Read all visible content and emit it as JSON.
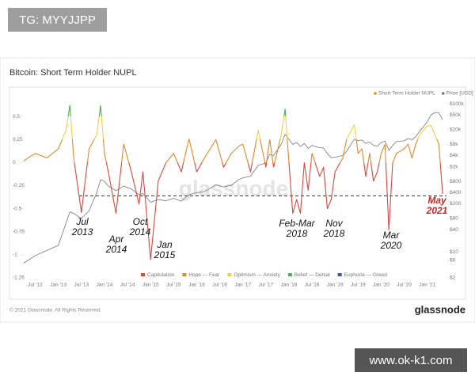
{
  "badges": {
    "top": "TG: MYYJJPP",
    "bottom": "www.ok-k1.com"
  },
  "footer": {
    "copyright": "© 2021 Glassnode. All Rights Reserved.",
    "brand": "glassnode"
  },
  "chart_data": {
    "type": "line",
    "title": "Bitcoin: Short Term Holder NUPL",
    "watermark": "glassnode",
    "x": [
      "2012-04",
      "2012-07",
      "2012-10",
      "2013-01",
      "2013-03",
      "2013-04",
      "2013-05",
      "2013-07",
      "2013-09",
      "2013-11",
      "2013-12",
      "2014-01",
      "2014-02",
      "2014-04",
      "2014-06",
      "2014-08",
      "2014-10",
      "2014-11",
      "2015-01",
      "2015-03",
      "2015-05",
      "2015-07",
      "2015-09",
      "2015-11",
      "2016-01",
      "2016-03",
      "2016-06",
      "2016-08",
      "2016-10",
      "2016-12",
      "2017-01",
      "2017-03",
      "2017-05",
      "2017-07",
      "2017-08",
      "2017-09",
      "2017-11",
      "2017-12",
      "2018-01",
      "2018-02",
      "2018-03",
      "2018-04",
      "2018-05",
      "2018-06",
      "2018-07",
      "2018-09",
      "2018-10",
      "2018-11",
      "2018-12",
      "2019-01",
      "2019-03",
      "2019-04",
      "2019-06",
      "2019-07",
      "2019-08",
      "2019-09",
      "2019-10",
      "2019-11",
      "2019-12",
      "2020-01",
      "2020-02",
      "2020-03",
      "2020-04",
      "2020-05",
      "2020-07",
      "2020-08",
      "2020-09",
      "2020-10",
      "2020-11",
      "2020-12",
      "2021-01",
      "2021-02",
      "2021-03",
      "2021-04",
      "2021-05"
    ],
    "series": [
      {
        "name": "Short Term Holder NUPL",
        "color": "#e08a2c",
        "colored_by_zones": true,
        "values": [
          0.02,
          0.1,
          0.05,
          0.15,
          0.35,
          0.62,
          0.05,
          -0.54,
          0.15,
          0.3,
          0.62,
          0.1,
          -0.1,
          -0.55,
          0.2,
          -0.1,
          -0.45,
          -0.1,
          -1.05,
          -0.2,
          0.0,
          0.1,
          -0.1,
          0.26,
          -0.1,
          0.05,
          0.25,
          -0.05,
          0.1,
          0.18,
          0.2,
          -0.1,
          0.35,
          -0.05,
          0.25,
          -0.05,
          0.3,
          0.58,
          0.0,
          -0.55,
          -0.4,
          -0.55,
          0.0,
          -0.3,
          0.1,
          -0.15,
          -0.05,
          -0.5,
          -0.4,
          -0.1,
          0.05,
          0.25,
          0.41,
          0.1,
          0.15,
          -0.15,
          0.1,
          -0.2,
          -0.1,
          0.1,
          0.2,
          -0.73,
          0.0,
          0.1,
          0.15,
          0.2,
          0.05,
          0.2,
          0.3,
          0.35,
          0.4,
          0.4,
          0.3,
          0.2,
          -0.34
        ]
      },
      {
        "name": "Price [USD]",
        "color": "#777777",
        "axis": "y2",
        "values": [
          5,
          8,
          11,
          15,
          60,
          120,
          110,
          80,
          130,
          400,
          900,
          800,
          600,
          450,
          600,
          500,
          350,
          380,
          220,
          260,
          240,
          280,
          235,
          350,
          400,
          420,
          650,
          570,
          630,
          900,
          1000,
          1100,
          2200,
          2500,
          4300,
          4000,
          8000,
          15000,
          11000,
          8000,
          9000,
          7000,
          8500,
          6200,
          7500,
          6500,
          6400,
          4500,
          3500,
          3600,
          4000,
          5200,
          11000,
          10000,
          10500,
          8500,
          9200,
          7500,
          7200,
          9000,
          9800,
          5500,
          7500,
          9500,
          10000,
          11500,
          10700,
          13000,
          18000,
          24000,
          33000,
          50000,
          58000,
          57000,
          37000
        ]
      }
    ],
    "zones": [
      {
        "name": "Capitulation",
        "color": "#d9473f",
        "from": -1.25,
        "to": 0
      },
      {
        "name": "Hope — Fear",
        "color": "#e08a2c",
        "from": 0,
        "to": 0.25
      },
      {
        "name": "Optimism — Anxiety",
        "color": "#f2cf4a",
        "from": 0.25,
        "to": 0.5
      },
      {
        "name": "Belief — Denial",
        "color": "#4caf50",
        "from": 0.5,
        "to": 0.75
      },
      {
        "name": "Euphoria — Greed",
        "color": "#3f51b5",
        "from": 0.75,
        "to": 1
      }
    ],
    "reference_line": -0.36,
    "annotations": [
      {
        "lines": [
          "Jul",
          "2013"
        ],
        "color": "#111111"
      },
      {
        "lines": [
          "Apr",
          "2014"
        ],
        "color": "#111111"
      },
      {
        "lines": [
          "Oct",
          "2014"
        ],
        "color": "#111111"
      },
      {
        "lines": [
          "Jan",
          "2015"
        ],
        "color": "#111111"
      },
      {
        "lines": [
          "Feb-Mar",
          "2018"
        ],
        "color": "#111111"
      },
      {
        "lines": [
          "Nov",
          "2018"
        ],
        "color": "#111111"
      },
      {
        "lines": [
          "Mar",
          "2020"
        ],
        "color": "#111111"
      },
      {
        "lines": [
          "May",
          "2021"
        ],
        "color": "#c62828"
      }
    ],
    "xlim": [
      "2012-04",
      "2021-06"
    ],
    "xticks": [
      {
        "value": "2012-07",
        "label": "Jul '12"
      },
      {
        "value": "2013-01",
        "label": "Jan '13"
      },
      {
        "value": "2013-07",
        "label": "Jul '13"
      },
      {
        "value": "2014-01",
        "label": "Jan '14"
      },
      {
        "value": "2014-07",
        "label": "Jul '14"
      },
      {
        "value": "2015-01",
        "label": "Jan '15"
      },
      {
        "value": "2015-07",
        "label": "Jul '15"
      },
      {
        "value": "2016-01",
        "label": "Jan '16"
      },
      {
        "value": "2016-07",
        "label": "Jul '16"
      },
      {
        "value": "2017-01",
        "label": "Jan '17"
      },
      {
        "value": "2017-07",
        "label": "Jul '17"
      },
      {
        "value": "2018-01",
        "label": "Jan '18"
      },
      {
        "value": "2018-07",
        "label": "Jul '18"
      },
      {
        "value": "2019-01",
        "label": "Jan '19"
      },
      {
        "value": "2019-07",
        "label": "Jul '19"
      },
      {
        "value": "2020-01",
        "label": "Jan '20"
      },
      {
        "value": "2020-07",
        "label": "Jul '20"
      },
      {
        "value": "2021-01",
        "label": "Jan '21"
      }
    ],
    "ylim": [
      -1.25,
      0.75
    ],
    "yticks": [
      0.5,
      0.25,
      0,
      -0.25,
      -0.5,
      -0.75,
      -1,
      -1.25
    ],
    "y2scale": "log",
    "y2lim": [
      2,
      190000
    ],
    "y2ticks": [
      {
        "value": 100000,
        "label": "$100k"
      },
      {
        "value": 50000,
        "label": "$50k"
      },
      {
        "value": 20000,
        "label": "$20k"
      },
      {
        "value": 8000,
        "label": "$8k"
      },
      {
        "value": 4000,
        "label": "$4k"
      },
      {
        "value": 2000,
        "label": "$2k"
      },
      {
        "value": 800,
        "label": "$800"
      },
      {
        "value": 400,
        "label": "$400"
      },
      {
        "value": 200,
        "label": "$200"
      },
      {
        "value": 80,
        "label": "$80"
      },
      {
        "value": 40,
        "label": "$40"
      },
      {
        "value": 10,
        "label": "$10"
      },
      {
        "value": 6,
        "label": "$6"
      },
      {
        "value": 2,
        "label": "$2"
      }
    ]
  }
}
